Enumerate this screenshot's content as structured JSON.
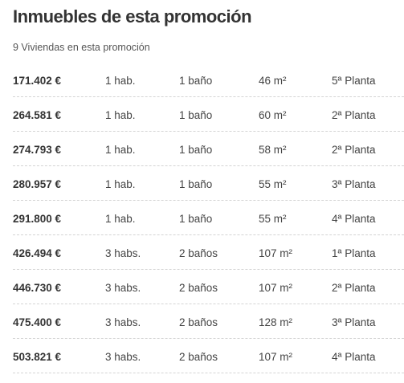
{
  "header": {
    "title": "Inmuebles de esta promoción",
    "subtitle": "9 Viviendas en esta promoción"
  },
  "listings": [
    {
      "price": "171.402 €",
      "rooms": "1 hab.",
      "baths": "1 baño",
      "area": "46 m²",
      "floor": "5ª Planta"
    },
    {
      "price": "264.581 €",
      "rooms": "1 hab.",
      "baths": "1 baño",
      "area": "60 m²",
      "floor": "2ª Planta"
    },
    {
      "price": "274.793 €",
      "rooms": "1 hab.",
      "baths": "1 baño",
      "area": "58 m²",
      "floor": "2ª Planta"
    },
    {
      "price": "280.957 €",
      "rooms": "1 hab.",
      "baths": "1 baño",
      "area": "55 m²",
      "floor": "3ª Planta"
    },
    {
      "price": "291.800 €",
      "rooms": "1 hab.",
      "baths": "1 baño",
      "area": "55 m²",
      "floor": "4ª Planta"
    },
    {
      "price": "426.494 €",
      "rooms": "3 habs.",
      "baths": "2 baños",
      "area": "107 m²",
      "floor": "1ª Planta"
    },
    {
      "price": "446.730 €",
      "rooms": "3 habs.",
      "baths": "2 baños",
      "area": "107 m²",
      "floor": "2ª Planta"
    },
    {
      "price": "475.400 €",
      "rooms": "3 habs.",
      "baths": "2 baños",
      "area": "128 m²",
      "floor": "3ª Planta"
    },
    {
      "price": "503.821 €",
      "rooms": "3 habs.",
      "baths": "2 baños",
      "area": "107 m²",
      "floor": "4ª Planta"
    }
  ]
}
